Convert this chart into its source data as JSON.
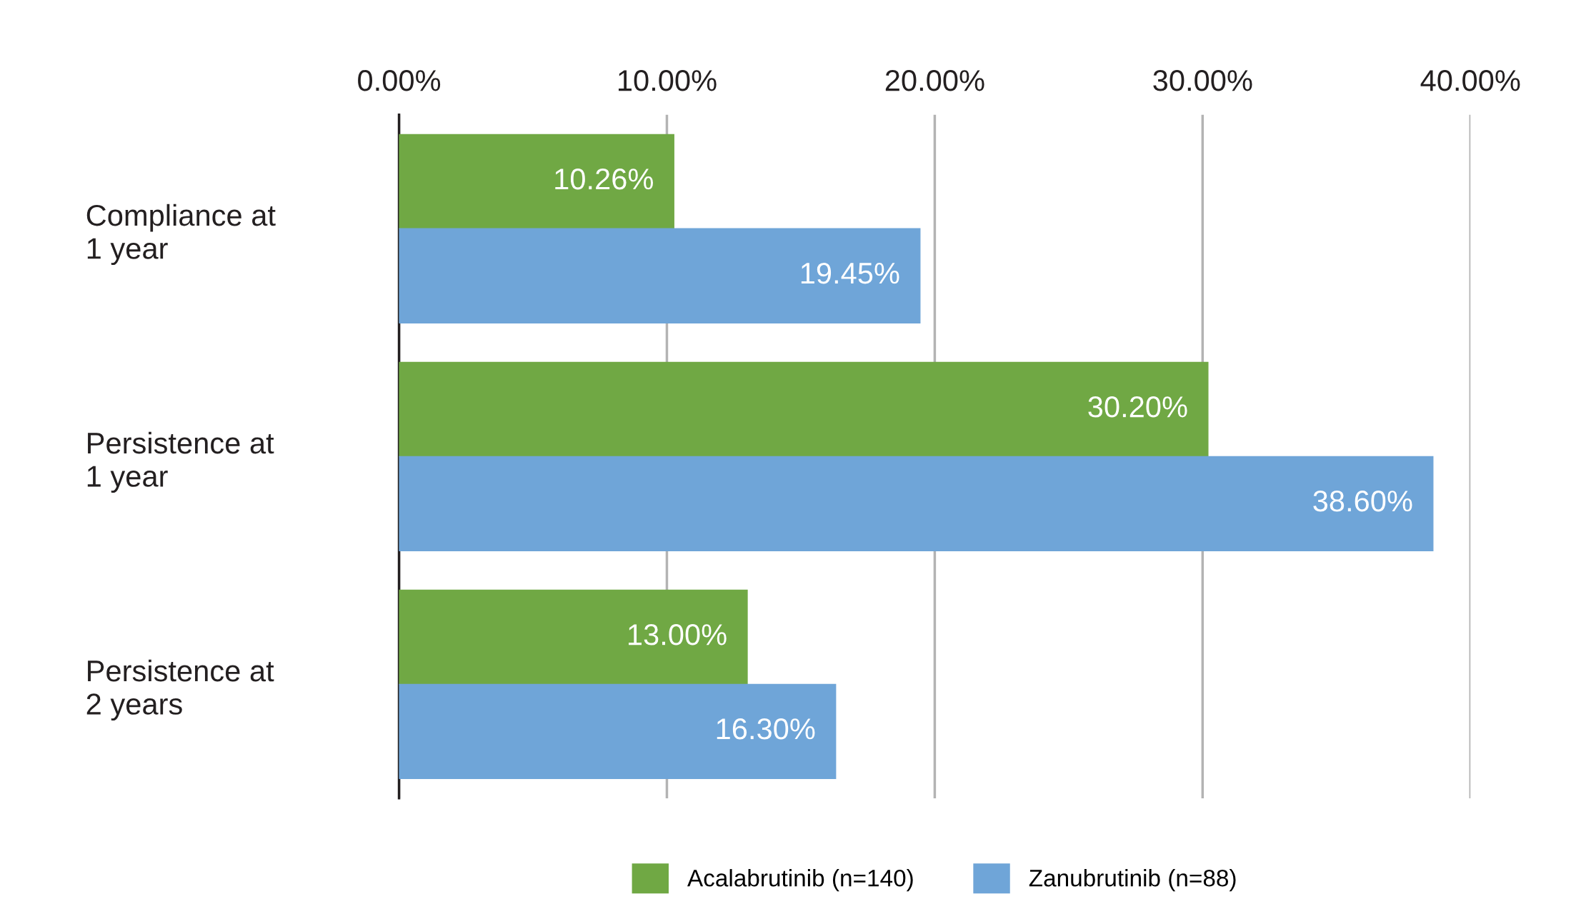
{
  "chart_data": {
    "type": "bar",
    "orientation": "horizontal",
    "categories": [
      "Compliance at\n1 year",
      "Persistence at\n1 year",
      "Persistence at\n2 years"
    ],
    "series": [
      {
        "name": "Acalabrutinib (n=140)",
        "color": "#70a844",
        "values": [
          10.26,
          30.2,
          13.0
        ],
        "value_labels": [
          "10.26%",
          "30.20%",
          "13.00%"
        ]
      },
      {
        "name": "Zanubrutinib (n=88)",
        "color": "#6fa5d8",
        "values": [
          19.45,
          38.6,
          16.3
        ],
        "value_labels": [
          "19.45%",
          "38.60%",
          "16.30%"
        ]
      }
    ],
    "xlim": [
      0,
      40
    ],
    "xticks": [
      {
        "value": 0,
        "label": "0.00%"
      },
      {
        "value": 10,
        "label": "10.00%"
      },
      {
        "value": 20,
        "label": "20.00%"
      },
      {
        "value": 30,
        "label": "30.00%"
      },
      {
        "value": 40,
        "label": "40.00%"
      }
    ],
    "grid": "x",
    "legend": "bottom"
  }
}
